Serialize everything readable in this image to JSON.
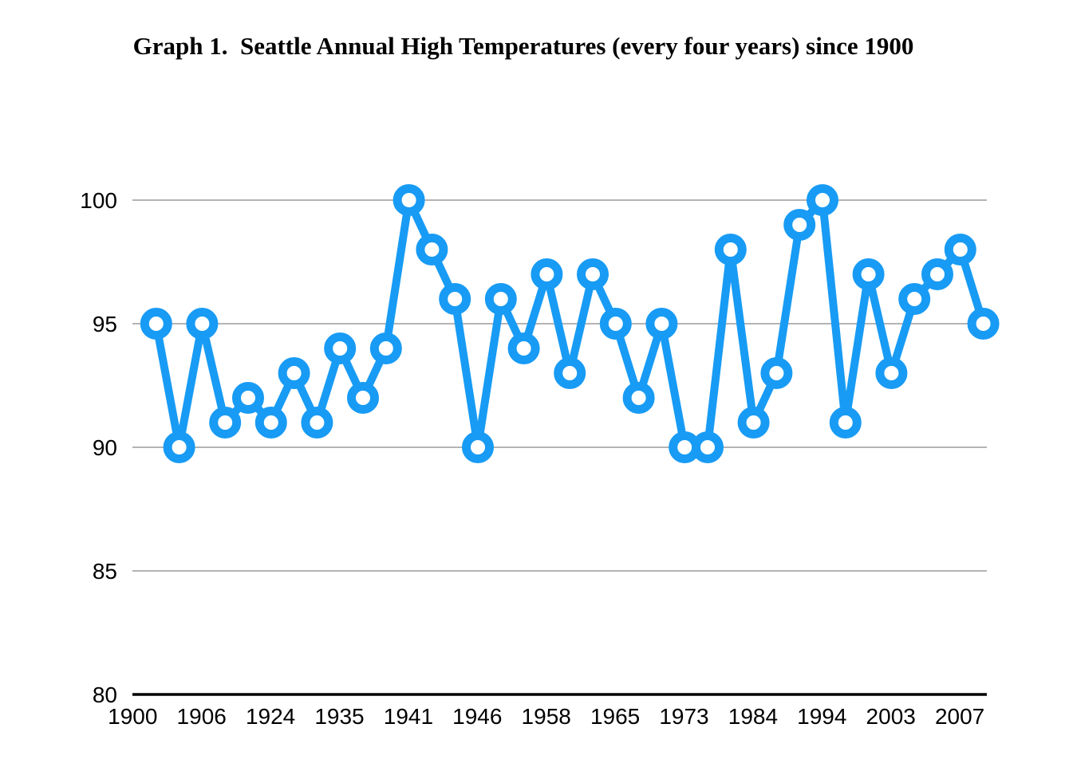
{
  "page": {
    "title": "Graph 1.  Seattle Annual High Temperatures (every four years) since 1900"
  },
  "chart_data": {
    "type": "line",
    "title": "Graph 1.  Seattle Annual High Temperatures (every four years) since 1900",
    "values": [
      95,
      90,
      95,
      91,
      92,
      91,
      93,
      91,
      94,
      92,
      94,
      100,
      98,
      96,
      90,
      96,
      94,
      97,
      93,
      97,
      95,
      92,
      95,
      90,
      90,
      98,
      91,
      93,
      99,
      100,
      91,
      97,
      93,
      96,
      97,
      98,
      95
    ],
    "x_tick_labels": [
      "1900",
      "1906",
      "1924",
      "1935",
      "1941",
      "1946",
      "1958",
      "1965",
      "1973",
      "1984",
      "1994",
      "2003",
      "2007"
    ],
    "x_tick_every_n_points": 3,
    "y_ticks": [
      100,
      95,
      90,
      85,
      80
    ],
    "ylim": [
      80,
      100
    ],
    "xlabel": "",
    "ylabel": "",
    "grid": "horizontal",
    "legend": "none",
    "marker": "open-circle",
    "colors": {
      "line": "#189bf4",
      "marker_fill": "#ffffff",
      "gridline": "#b4b4b4",
      "axis": "#000000",
      "text": "#000000",
      "background": "#ffffff"
    }
  }
}
